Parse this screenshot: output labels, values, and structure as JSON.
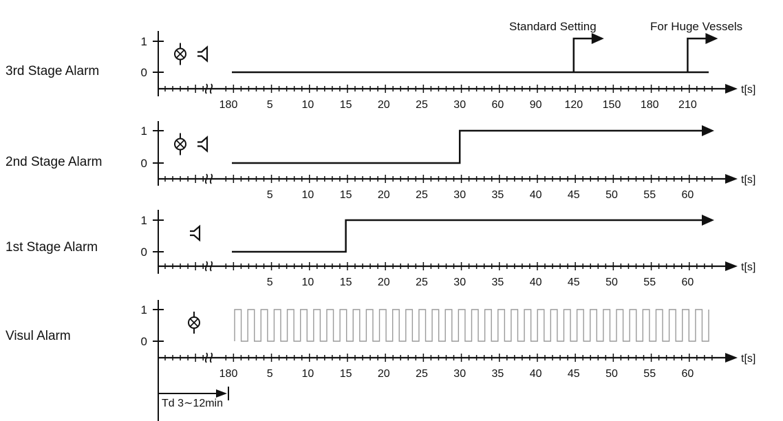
{
  "unit_label": "t[s]",
  "level_labels": [
    "1",
    "0"
  ],
  "delay": {
    "label": "Td  3∼12min"
  },
  "annotations": {
    "standard": "Standard Setting",
    "huge": "For Huge Vessels"
  },
  "stages": [
    {
      "id": "stage3",
      "label": "3rd Stage Alarm",
      "icons": [
        "lamp-icon",
        "horn-icon"
      ],
      "ticks": [
        "180",
        "5",
        "10",
        "15",
        "20",
        "25",
        "30",
        "60",
        "90",
        "120",
        "150",
        "180",
        "210"
      ],
      "signal": {
        "type": "step",
        "rise_tick_index": 9,
        "second_rise_tick_index": 12
      }
    },
    {
      "id": "stage2",
      "label": "2nd Stage Alarm",
      "icons": [
        "lamp-icon",
        "horn-icon"
      ],
      "ticks": [
        "",
        "5",
        "10",
        "15",
        "20",
        "25",
        "30",
        "35",
        "40",
        "45",
        "50",
        "55",
        "60"
      ],
      "signal": {
        "type": "step",
        "rise_tick_index": 6
      }
    },
    {
      "id": "stage1",
      "label": "1st Stage Alarm",
      "icons": [
        "horn-icon"
      ],
      "ticks": [
        "",
        "5",
        "10",
        "15",
        "20",
        "25",
        "30",
        "35",
        "40",
        "45",
        "50",
        "55",
        "60"
      ],
      "signal": {
        "type": "step",
        "rise_tick_index": 3
      }
    },
    {
      "id": "visual",
      "label": "Visul Alarm",
      "icons": [
        "lamp-icon"
      ],
      "ticks": [
        "180",
        "5",
        "10",
        "15",
        "20",
        "25",
        "30",
        "35",
        "40",
        "45",
        "50",
        "55",
        "60"
      ],
      "signal": {
        "type": "pulse"
      }
    }
  ]
}
